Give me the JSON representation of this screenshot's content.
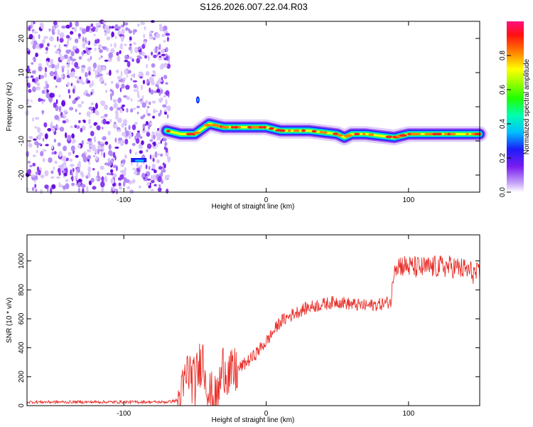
{
  "title": "S126.2026.007.22.04.R03",
  "chart_data": [
    {
      "type": "heatmap",
      "name": "spectrogram",
      "xlabel": "Height of straight line (km)",
      "ylabel": "Frequency (Hz)",
      "xlim": [
        -168,
        150
      ],
      "ylim": [
        -25,
        25
      ],
      "xticks": [
        -100,
        0,
        100
      ],
      "yticks": [
        -20,
        -10,
        0,
        10,
        20
      ],
      "ridge": {
        "x": [
          -70,
          -60,
          -50,
          -40,
          -30,
          -20,
          -10,
          0,
          10,
          20,
          30,
          40,
          50,
          55,
          60,
          70,
          80,
          90,
          100,
          110,
          120,
          130,
          140,
          150
        ],
        "freq": [
          -7,
          -8,
          -8,
          -5,
          -6,
          -6,
          -6,
          -6,
          -7,
          -7,
          -7,
          -7.5,
          -8,
          -9,
          -8,
          -8,
          -8.5,
          -9,
          -8,
          -8,
          -8,
          -8,
          -8,
          -8
        ]
      },
      "noise_region_x": [
        -168,
        -68
      ],
      "colorbar": {
        "label": "Normalized spectral amplitude",
        "ticks": [
          0.0,
          0.2,
          0.4,
          0.6,
          0.8
        ],
        "tick_labels": [
          "0.0",
          "0.2",
          "0.4",
          "0.6",
          "0.8"
        ],
        "range": [
          0,
          1
        ]
      }
    },
    {
      "type": "line",
      "name": "snr",
      "xlabel": "Height of straight line (km)",
      "ylabel": "SNR (10 * v/v)",
      "xlim": [
        -168,
        150
      ],
      "ylim": [
        0,
        1180
      ],
      "xticks": [
        -100,
        0,
        100
      ],
      "yticks": [
        0,
        200,
        400,
        600,
        800,
        1000
      ],
      "color": "#e8312b",
      "series": [
        {
          "name": "SNR",
          "x": [
            -168,
            -140,
            -100,
            -80,
            -70,
            -60,
            -55,
            -50,
            -45,
            -40,
            -35,
            -30,
            -25,
            -20,
            -10,
            0,
            10,
            20,
            30,
            40,
            50,
            60,
            70,
            80,
            88,
            90,
            100,
            110,
            120,
            130,
            140,
            150
          ],
          "y": [
            25,
            25,
            25,
            25,
            25,
            40,
            250,
            150,
            350,
            80,
            20,
            280,
            200,
            250,
            330,
            440,
            580,
            640,
            680,
            700,
            720,
            700,
            690,
            700,
            720,
            980,
            960,
            950,
            960,
            960,
            940,
            900
          ]
        }
      ]
    }
  ]
}
